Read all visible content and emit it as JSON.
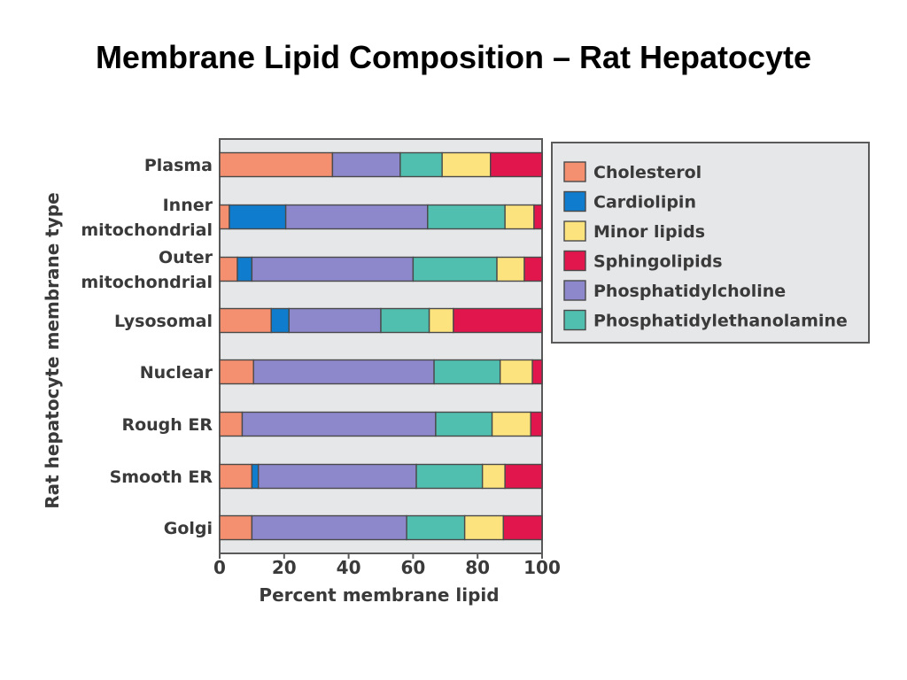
{
  "slide": {
    "title": "Membrane Lipid Composition – Rat Hepatocyte"
  },
  "chart_data": {
    "type": "bar",
    "orientation": "horizontal",
    "stacked": true,
    "categories": [
      "Plasma",
      "Inner\nmitochondrial",
      "Outer\nmitochondrial",
      "Lysosomal",
      "Nuclear",
      "Rough ER",
      "Smooth ER",
      "Golgi"
    ],
    "xlabel": "Percent membrane lipid",
    "ylabel": "Rat hepatocyte membrane type",
    "xlim": [
      0,
      100
    ],
    "xticks": [
      0,
      20,
      40,
      60,
      80,
      100
    ],
    "grid": false,
    "legend_position": "right",
    "series": [
      {
        "name": "Cholesterol",
        "color": "#f48f6f",
        "values": [
          35,
          3,
          5.5,
          16,
          10.5,
          7,
          10,
          10
        ]
      },
      {
        "name": "Cardiolipin",
        "color": "#0f7ccd",
        "values": [
          0,
          17.5,
          4.5,
          5.5,
          0,
          0,
          2,
          0
        ]
      },
      {
        "name": "Phosphatidylcholine",
        "color": "#8d87cb",
        "values": [
          21,
          44,
          50,
          28.5,
          56,
          60,
          49,
          48
        ]
      },
      {
        "name": "Phosphatidylethanolamine",
        "color": "#51bfaf",
        "values": [
          13,
          24,
          26,
          15,
          20.5,
          17.5,
          20.5,
          18
        ]
      },
      {
        "name": "Minor lipids",
        "color": "#fde37e",
        "values": [
          15,
          9,
          8.5,
          7.5,
          10,
          12,
          7,
          12
        ]
      },
      {
        "name": "Sphingolipids",
        "color": "#e1164c",
        "values": [
          16,
          2.5,
          5.5,
          27.5,
          3,
          3.5,
          11.5,
          12
        ]
      }
    ],
    "legend_order": [
      "Cholesterol",
      "Cardiolipin",
      "Minor lipids",
      "Sphingolipids",
      "Phosphatidylcholine",
      "Phosphatidylethanolamine"
    ]
  }
}
